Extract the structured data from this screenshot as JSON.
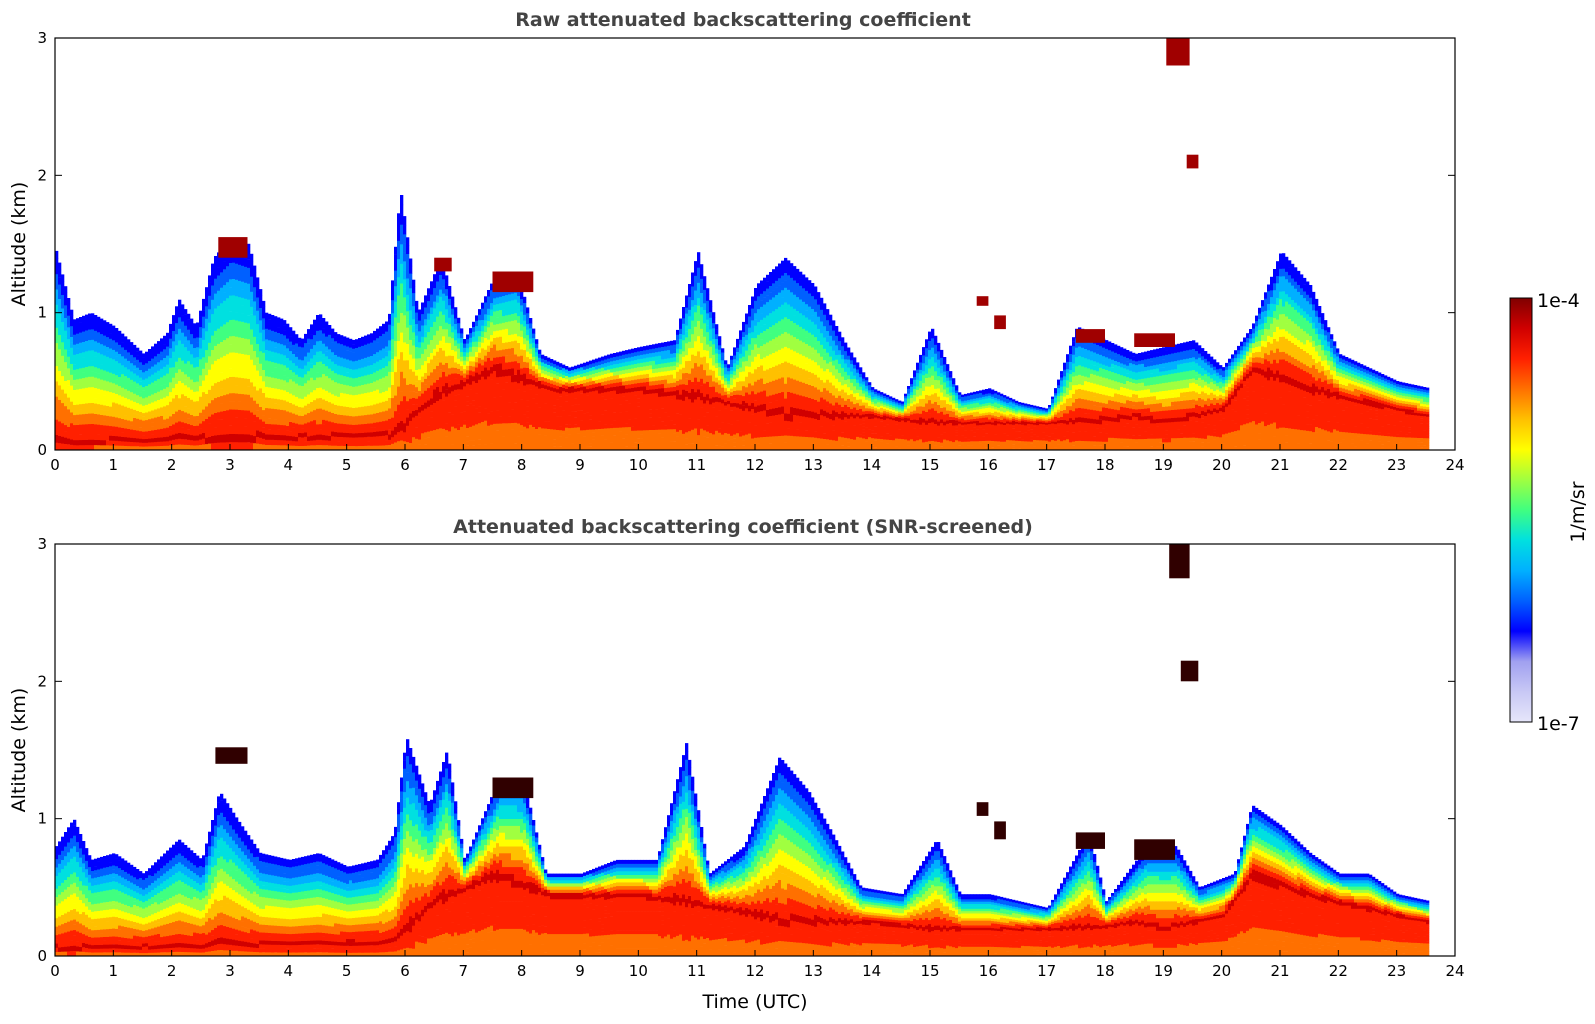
{
  "chart_data": [
    {
      "type": "heatmap",
      "title": "Raw attenuated backscattering coefficient",
      "xlabel": "",
      "ylabel": "Altitude (km)",
      "xlim": [
        0,
        24
      ],
      "ylim": [
        0,
        3
      ],
      "xticks": [
        0,
        1,
        2,
        3,
        4,
        5,
        6,
        7,
        8,
        9,
        10,
        11,
        12,
        13,
        14,
        15,
        16,
        17,
        18,
        19,
        20,
        21,
        22,
        23,
        24
      ],
      "yticks": [
        0,
        1,
        2,
        3
      ],
      "data_end_time": 23.55,
      "layer_top_km": [
        [
          0,
          1.45
        ],
        [
          0.3,
          0.95
        ],
        [
          0.6,
          1.0
        ],
        [
          1.0,
          0.9
        ],
        [
          1.5,
          0.7
        ],
        [
          1.9,
          0.85
        ],
        [
          2.1,
          1.1
        ],
        [
          2.4,
          0.9
        ],
        [
          2.7,
          1.4
        ],
        [
          3.0,
          1.55
        ],
        [
          3.3,
          1.5
        ],
        [
          3.6,
          1.0
        ],
        [
          3.9,
          0.95
        ],
        [
          4.2,
          0.8
        ],
        [
          4.5,
          1.0
        ],
        [
          4.8,
          0.85
        ],
        [
          5.1,
          0.8
        ],
        [
          5.4,
          0.85
        ],
        [
          5.7,
          0.95
        ],
        [
          5.9,
          1.9
        ],
        [
          6.2,
          1.0
        ],
        [
          6.6,
          1.4
        ],
        [
          7.0,
          0.8
        ],
        [
          7.5,
          1.25
        ],
        [
          7.9,
          1.3
        ],
        [
          8.3,
          0.7
        ],
        [
          8.8,
          0.6
        ],
        [
          9.5,
          0.7
        ],
        [
          10.0,
          0.75
        ],
        [
          10.6,
          0.8
        ],
        [
          11.0,
          1.45
        ],
        [
          11.5,
          0.6
        ],
        [
          12.0,
          1.2
        ],
        [
          12.5,
          1.4
        ],
        [
          13.0,
          1.2
        ],
        [
          13.5,
          0.8
        ],
        [
          14.0,
          0.45
        ],
        [
          14.5,
          0.35
        ],
        [
          15.0,
          0.9
        ],
        [
          15.5,
          0.4
        ],
        [
          16.0,
          0.45
        ],
        [
          16.5,
          0.35
        ],
        [
          17.0,
          0.3
        ],
        [
          17.5,
          0.9
        ],
        [
          18.0,
          0.8
        ],
        [
          18.5,
          0.7
        ],
        [
          19.0,
          0.75
        ],
        [
          19.5,
          0.8
        ],
        [
          20.0,
          0.6
        ],
        [
          20.5,
          0.9
        ],
        [
          21.0,
          1.45
        ],
        [
          21.5,
          1.2
        ],
        [
          22.0,
          0.7
        ],
        [
          22.5,
          0.6
        ],
        [
          23.0,
          0.5
        ],
        [
          23.55,
          0.45
        ]
      ],
      "peak_height_km": [
        [
          0,
          0.05
        ],
        [
          5.8,
          0.1
        ],
        [
          6.5,
          0.4
        ],
        [
          7.5,
          0.6
        ],
        [
          8.5,
          0.45
        ],
        [
          10.0,
          0.45
        ],
        [
          11.5,
          0.35
        ],
        [
          12.5,
          0.25
        ],
        [
          14.0,
          0.25
        ],
        [
          15.0,
          0.2
        ],
        [
          16.0,
          0.2
        ],
        [
          17.0,
          0.2
        ],
        [
          18.0,
          0.22
        ],
        [
          18.5,
          0.25
        ],
        [
          19.0,
          0.2
        ],
        [
          20.0,
          0.3
        ],
        [
          20.5,
          0.6
        ],
        [
          21.5,
          0.45
        ],
        [
          22.5,
          0.35
        ],
        [
          23.55,
          0.25
        ]
      ],
      "cloud_layers": [
        {
          "time": [
            2.8,
            3.3
          ],
          "alt_km": [
            1.4,
            1.55
          ]
        },
        {
          "time": [
            6.5,
            6.8
          ],
          "alt_km": [
            1.3,
            1.4
          ]
        },
        {
          "time": [
            7.5,
            8.2
          ],
          "alt_km": [
            1.15,
            1.3
          ]
        },
        {
          "time": [
            15.8,
            16.0
          ],
          "alt_km": [
            1.05,
            1.12
          ]
        },
        {
          "time": [
            16.1,
            16.3
          ],
          "alt_km": [
            0.88,
            0.98
          ]
        },
        {
          "time": [
            17.5,
            18.0
          ],
          "alt_km": [
            0.78,
            0.88
          ]
        },
        {
          "time": [
            18.5,
            19.2
          ],
          "alt_km": [
            0.75,
            0.85
          ]
        },
        {
          "time": [
            19.05,
            19.45
          ],
          "alt_km": [
            2.8,
            3.0
          ]
        },
        {
          "time": [
            19.4,
            19.6
          ],
          "alt_km": [
            2.05,
            2.15
          ]
        }
      ]
    },
    {
      "type": "heatmap",
      "title": "Attenuated backscattering coefficient (SNR-screened)",
      "xlabel": "Time (UTC)",
      "ylabel": "Altitude (km)",
      "xlim": [
        0,
        24
      ],
      "ylim": [
        0,
        3
      ],
      "xticks": [
        0,
        1,
        2,
        3,
        4,
        5,
        6,
        7,
        8,
        9,
        10,
        11,
        12,
        13,
        14,
        15,
        16,
        17,
        18,
        19,
        20,
        21,
        22,
        23,
        24
      ],
      "yticks": [
        0,
        1,
        2,
        3
      ],
      "data_end_time": 23.55,
      "layer_top_km": [
        [
          0,
          0.8
        ],
        [
          0.3,
          1.0
        ],
        [
          0.6,
          0.7
        ],
        [
          1.0,
          0.75
        ],
        [
          1.5,
          0.6
        ],
        [
          2.1,
          0.85
        ],
        [
          2.5,
          0.7
        ],
        [
          2.8,
          1.2
        ],
        [
          3.1,
          1.0
        ],
        [
          3.5,
          0.75
        ],
        [
          4.0,
          0.7
        ],
        [
          4.5,
          0.75
        ],
        [
          5.0,
          0.65
        ],
        [
          5.5,
          0.7
        ],
        [
          5.8,
          0.9
        ],
        [
          6.0,
          1.6
        ],
        [
          6.4,
          1.1
        ],
        [
          6.7,
          1.5
        ],
        [
          7.0,
          0.7
        ],
        [
          7.6,
          1.3
        ],
        [
          8.0,
          1.3
        ],
        [
          8.4,
          0.6
        ],
        [
          9.0,
          0.6
        ],
        [
          9.6,
          0.7
        ],
        [
          10.3,
          0.7
        ],
        [
          10.8,
          1.55
        ],
        [
          11.2,
          0.6
        ],
        [
          11.8,
          0.8
        ],
        [
          12.4,
          1.45
        ],
        [
          12.9,
          1.2
        ],
        [
          13.3,
          0.9
        ],
        [
          13.8,
          0.5
        ],
        [
          14.5,
          0.45
        ],
        [
          15.1,
          0.85
        ],
        [
          15.5,
          0.45
        ],
        [
          16.0,
          0.45
        ],
        [
          16.5,
          0.4
        ],
        [
          17.0,
          0.35
        ],
        [
          17.7,
          0.9
        ],
        [
          18.0,
          0.4
        ],
        [
          18.7,
          0.8
        ],
        [
          19.2,
          0.8
        ],
        [
          19.6,
          0.5
        ],
        [
          20.2,
          0.6
        ],
        [
          20.5,
          1.1
        ],
        [
          21.0,
          0.95
        ],
        [
          21.5,
          0.75
        ],
        [
          22.0,
          0.6
        ],
        [
          22.5,
          0.6
        ],
        [
          23.0,
          0.45
        ],
        [
          23.55,
          0.4
        ]
      ],
      "peak_height_km": [
        [
          0,
          0.05
        ],
        [
          5.8,
          0.1
        ],
        [
          6.5,
          0.4
        ],
        [
          7.5,
          0.6
        ],
        [
          8.5,
          0.45
        ],
        [
          10.0,
          0.45
        ],
        [
          11.5,
          0.35
        ],
        [
          12.5,
          0.25
        ],
        [
          14.0,
          0.25
        ],
        [
          15.0,
          0.2
        ],
        [
          16.0,
          0.2
        ],
        [
          17.0,
          0.2
        ],
        [
          18.0,
          0.22
        ],
        [
          18.5,
          0.25
        ],
        [
          19.0,
          0.2
        ],
        [
          20.0,
          0.3
        ],
        [
          20.5,
          0.6
        ],
        [
          21.5,
          0.45
        ],
        [
          22.5,
          0.35
        ],
        [
          23.55,
          0.25
        ]
      ],
      "cloud_layers": [
        {
          "time": [
            2.75,
            3.3
          ],
          "alt_km": [
            1.4,
            1.52
          ]
        },
        {
          "time": [
            7.5,
            8.2
          ],
          "alt_km": [
            1.15,
            1.3
          ]
        },
        {
          "time": [
            15.8,
            16.0
          ],
          "alt_km": [
            1.02,
            1.12
          ]
        },
        {
          "time": [
            16.1,
            16.3
          ],
          "alt_km": [
            0.85,
            0.98
          ]
        },
        {
          "time": [
            17.5,
            18.0
          ],
          "alt_km": [
            0.78,
            0.9
          ]
        },
        {
          "time": [
            18.5,
            19.2
          ],
          "alt_km": [
            0.7,
            0.85
          ]
        },
        {
          "time": [
            19.1,
            19.45
          ],
          "alt_km": [
            2.75,
            3.0
          ]
        },
        {
          "time": [
            19.3,
            19.6
          ],
          "alt_km": [
            2.0,
            2.15
          ]
        }
      ]
    }
  ],
  "colorbar": {
    "label": "1/m/sr",
    "max_label": "1e-4",
    "min_label": "1e-7",
    "colors": [
      "#e6e6fa",
      "#c8c8f5",
      "#a0a0f0",
      "#0000ff",
      "#0060ff",
      "#00b0ff",
      "#00e0e0",
      "#40ff80",
      "#a0ff40",
      "#ffff00",
      "#ffc000",
      "#ff7000",
      "#ff2000",
      "#d00000",
      "#800000"
    ]
  }
}
